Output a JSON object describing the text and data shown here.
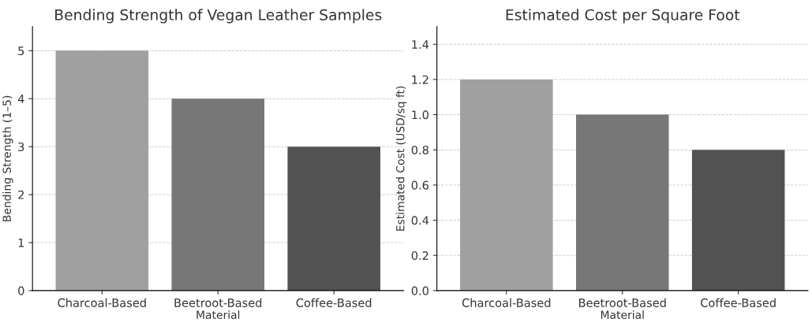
{
  "chart_data": [
    {
      "type": "bar",
      "title": "Bending Strength of Vegan Leather Samples",
      "xlabel": "Material",
      "ylabel": "Bending Strength (1–5)",
      "categories": [
        "Charcoal-Based",
        "Beetroot-Based",
        "Coffee-Based"
      ],
      "values": [
        5,
        4,
        3
      ],
      "colors": [
        "#a0a0a0",
        "#777777",
        "#525252"
      ],
      "ylim": [
        0,
        5.5
      ],
      "yticks": [
        0,
        1,
        2,
        3,
        4,
        5
      ],
      "grid": "y"
    },
    {
      "type": "bar",
      "title": "Estimated Cost per Square Foot",
      "xlabel": "Material",
      "ylabel": "Estimated Cost (USD/sq ft)",
      "categories": [
        "Charcoal-Based",
        "Beetroot-Based",
        "Coffee-Based"
      ],
      "values": [
        1.2,
        1.0,
        0.8
      ],
      "colors": [
        "#a0a0a0",
        "#777777",
        "#525252"
      ],
      "ylim": [
        0,
        1.5
      ],
      "yticks": [
        {
          "value": 0,
          "label": "0.0"
        },
        0.2,
        0.4,
        0.6,
        0.8,
        {
          "value": 1,
          "label": "1.0"
        },
        1.2,
        1.4
      ],
      "grid": "y"
    }
  ]
}
